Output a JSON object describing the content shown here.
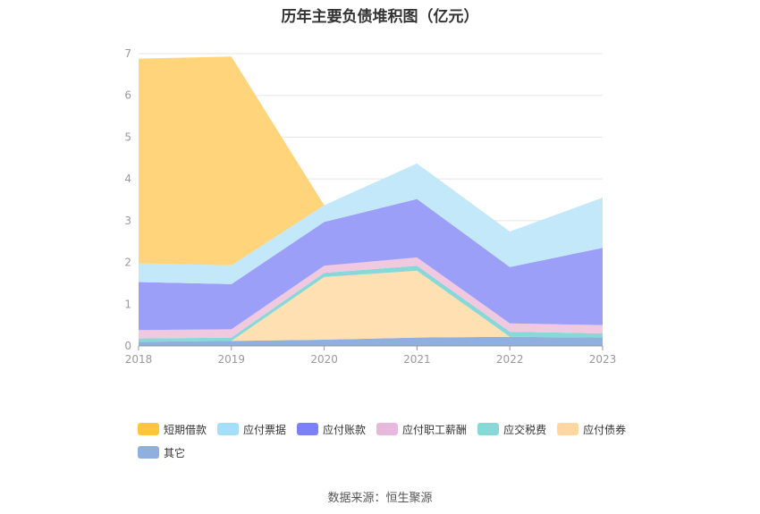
{
  "title": "历年主要负债堆积图（亿元）",
  "source": "数据来源：恒生聚源",
  "chart_data": {
    "type": "area",
    "stacked": true,
    "categories": [
      "2018",
      "2019",
      "2020",
      "2021",
      "2022",
      "2023"
    ],
    "ylim": [
      0,
      7
    ],
    "yticks": [
      "0",
      "1",
      "2",
      "3",
      "4",
      "5",
      "6",
      "7"
    ],
    "grid": true,
    "legend_position": "bottom",
    "series": [
      {
        "name": "其它",
        "color": "#8FB0DE",
        "values": [
          0.1,
          0.12,
          0.15,
          0.2,
          0.22,
          0.2
        ]
      },
      {
        "name": "应付债券",
        "color": "#FFE0B2",
        "values": [
          0,
          0,
          1.5,
          1.6,
          0,
          0
        ]
      },
      {
        "name": "应交税费",
        "color": "#88D8D8",
        "values": [
          0.08,
          0.08,
          0.1,
          0.12,
          0.12,
          0.1
        ]
      },
      {
        "name": "应付职工薪酬",
        "color": "#F0C8E0",
        "values": [
          0.2,
          0.2,
          0.17,
          0.2,
          0.2,
          0.2
        ]
      },
      {
        "name": "应付账款",
        "color": "#9B9FF8",
        "values": [
          1.15,
          1.08,
          1.05,
          1.4,
          1.35,
          1.85
        ]
      },
      {
        "name": "应付票据",
        "color": "#C3E8FA",
        "values": [
          0.45,
          0.45,
          0.4,
          0.85,
          0.85,
          1.2
        ]
      },
      {
        "name": "短期借款",
        "color": "#FFD47A",
        "values": [
          4.9,
          5.0,
          0,
          0,
          0,
          0
        ]
      }
    ],
    "legend": [
      {
        "name": "短期借款",
        "color": "#FFC53D"
      },
      {
        "name": "应付票据",
        "color": "#A5DEFA"
      },
      {
        "name": "应付账款",
        "color": "#7B80F6"
      },
      {
        "name": "应付职工薪酬",
        "color": "#E8B8DC"
      },
      {
        "name": "应交税费",
        "color": "#88D8D8"
      },
      {
        "name": "应付债券",
        "color": "#FFD7A0"
      },
      {
        "name": "其它",
        "color": "#8FB0DE"
      }
    ]
  }
}
